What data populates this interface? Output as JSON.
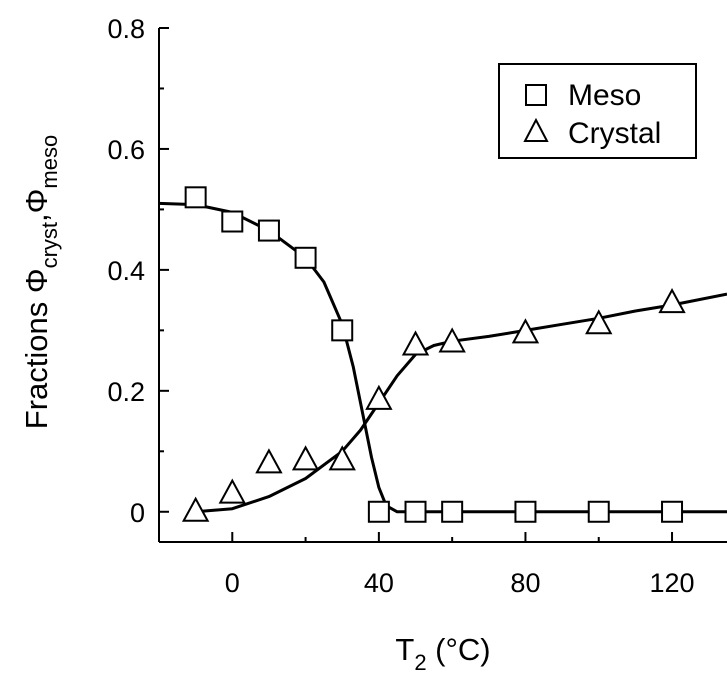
{
  "chart_data": {
    "type": "scatter",
    "xlabel": {
      "main": "T",
      "sub": "2",
      "unit": " (°C)"
    },
    "ylabel": {
      "main": "Fractions Φ",
      "sub1": "cryst",
      "sep": ",Φ",
      "sub2": "meso"
    },
    "xlim": [
      -20,
      135
    ],
    "ylim": [
      -0.05,
      0.8
    ],
    "x_ticks": [
      0,
      40,
      80,
      120
    ],
    "y_ticks": [
      0,
      0.2,
      0.4,
      0.6,
      0.8
    ],
    "x_tick_labels": [
      "0",
      "40",
      "80",
      "120"
    ],
    "y_tick_labels": [
      "0",
      "0.2",
      "0.4",
      "0.6",
      "0.8"
    ],
    "grid": false,
    "legend": {
      "position": "top-right",
      "entries": [
        "Meso",
        "Crystal"
      ]
    },
    "series": [
      {
        "name": "Meso",
        "marker": "square",
        "points": [
          [
            -10,
            0.52
          ],
          [
            0,
            0.48
          ],
          [
            10,
            0.465
          ],
          [
            20,
            0.42
          ],
          [
            30,
            0.3
          ],
          [
            40,
            0.0
          ],
          [
            50,
            0.0
          ],
          [
            60,
            0.0
          ],
          [
            80,
            0.0
          ],
          [
            100,
            0.0
          ],
          [
            120,
            0.0
          ]
        ]
      },
      {
        "name": "Crystal",
        "marker": "triangle",
        "points": [
          [
            -10,
            0.0
          ],
          [
            0,
            0.03
          ],
          [
            10,
            0.08
          ],
          [
            20,
            0.085
          ],
          [
            30,
            0.085
          ],
          [
            40,
            0.185
          ],
          [
            50,
            0.275
          ],
          [
            60,
            0.28
          ],
          [
            80,
            0.295
          ],
          [
            100,
            0.31
          ],
          [
            120,
            0.345
          ]
        ]
      }
    ],
    "fit_curves": [
      {
        "for": "Meso",
        "points": [
          [
            -20,
            0.51
          ],
          [
            -10,
            0.508
          ],
          [
            0,
            0.495
          ],
          [
            10,
            0.465
          ],
          [
            20,
            0.42
          ],
          [
            25,
            0.38
          ],
          [
            30,
            0.31
          ],
          [
            33,
            0.24
          ],
          [
            36,
            0.15
          ],
          [
            38,
            0.09
          ],
          [
            40,
            0.04
          ],
          [
            42,
            0.01
          ],
          [
            45,
            0.0
          ],
          [
            60,
            0.0
          ],
          [
            80,
            0.0
          ],
          [
            100,
            0.0
          ],
          [
            120,
            0.0
          ],
          [
            135,
            0.0
          ]
        ]
      },
      {
        "for": "Crystal",
        "points": [
          [
            -10,
            0.0
          ],
          [
            0,
            0.005
          ],
          [
            10,
            0.025
          ],
          [
            20,
            0.055
          ],
          [
            30,
            0.1
          ],
          [
            35,
            0.135
          ],
          [
            40,
            0.18
          ],
          [
            45,
            0.225
          ],
          [
            50,
            0.26
          ],
          [
            55,
            0.275
          ],
          [
            60,
            0.282
          ],
          [
            70,
            0.29
          ],
          [
            80,
            0.3
          ],
          [
            90,
            0.31
          ],
          [
            100,
            0.32
          ],
          [
            110,
            0.332
          ],
          [
            120,
            0.342
          ],
          [
            135,
            0.36
          ]
        ]
      }
    ]
  }
}
